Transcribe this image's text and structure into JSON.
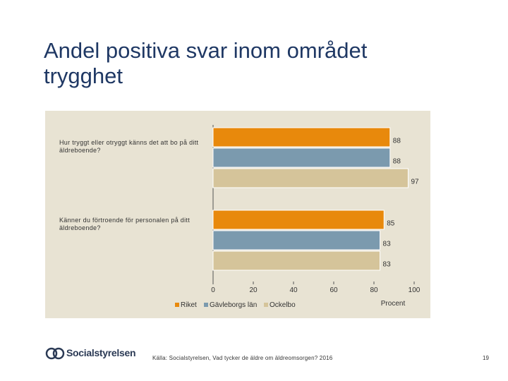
{
  "slide": {
    "title_line1": "Andel positiva svar inom området",
    "title_line2": "trygghet",
    "source": "Källa: Socialstyrelsen, Vad tycker de äldre om äldreomsorgen? 2016",
    "page_number": "19",
    "logo_text": "Socialstyrelsen"
  },
  "colors": {
    "panel_bg": "#e8e3d3",
    "riket": "#e8890c",
    "gavleborg": "#7b9aae",
    "ockelbo": "#d5c49a"
  },
  "chart_data": {
    "type": "bar",
    "orientation": "horizontal",
    "categories": [
      "Hur tryggt eller otryggt känns det att bo på ditt äldreboende?",
      "Känner du förtroende för personalen på ditt äldreboende?"
    ],
    "series": [
      {
        "name": "Riket",
        "values": [
          88,
          85
        ]
      },
      {
        "name": "Gävleborgs län",
        "values": [
          88,
          83
        ]
      },
      {
        "name": "Ockelbo",
        "values": [
          97,
          83
        ]
      }
    ],
    "xlim": [
      0,
      100
    ],
    "xticks": [
      0,
      20,
      40,
      60,
      80,
      100
    ],
    "xlabel": "Procent",
    "ylabel": "",
    "title": "",
    "legend_position": "bottom-left",
    "grid": false
  }
}
